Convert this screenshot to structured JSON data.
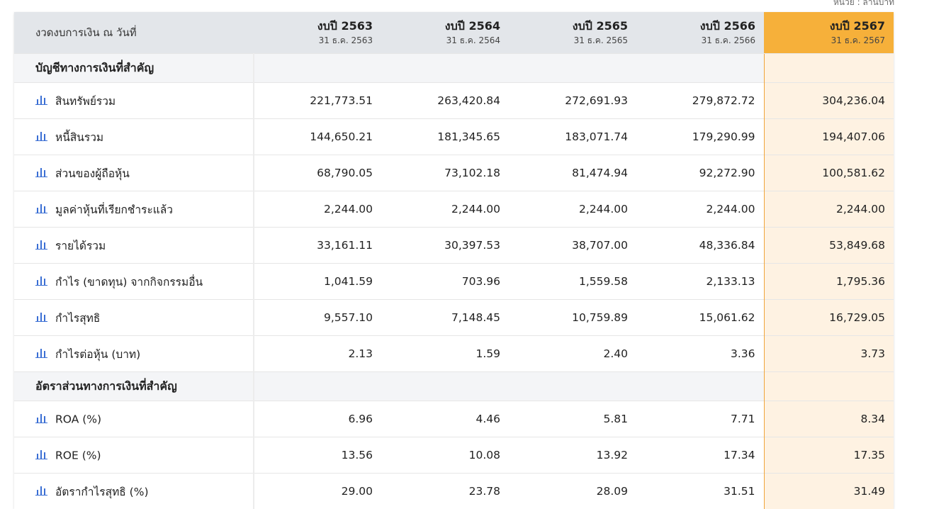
{
  "unit_note": "หน่วย : ล้านบาท",
  "header": {
    "label": "งวดงบการเงิน ณ วันที่",
    "years": [
      {
        "year": "งบปี 2563",
        "date": "31 ธ.ค. 2563"
      },
      {
        "year": "งบปี 2564",
        "date": "31 ธ.ค. 2564"
      },
      {
        "year": "งบปี 2565",
        "date": "31 ธ.ค. 2565"
      },
      {
        "year": "งบปี 2566",
        "date": "31 ธ.ค. 2566"
      },
      {
        "year": "งบปี 2567",
        "date": "31 ธ.ค. 2567"
      }
    ]
  },
  "sections": [
    {
      "title": "บัญชีทางการเงินที่สำคัญ",
      "rows": [
        {
          "label": "สินทรัพย์รวม",
          "icon": "bar-chart-icon",
          "values": [
            "221,773.51",
            "263,420.84",
            "272,691.93",
            "279,872.72",
            "304,236.04"
          ]
        },
        {
          "label": "หนี้สินรวม",
          "icon": "bar-chart-icon",
          "values": [
            "144,650.21",
            "181,345.65",
            "183,071.74",
            "179,290.99",
            "194,407.06"
          ]
        },
        {
          "label": "ส่วนของผู้ถือหุ้น",
          "icon": "bar-chart-icon",
          "values": [
            "68,790.05",
            "73,102.18",
            "81,474.94",
            "92,272.90",
            "100,581.62"
          ]
        },
        {
          "label": "มูลค่าหุ้นที่เรียกชำระแล้ว",
          "icon": "bar-chart-icon",
          "values": [
            "2,244.00",
            "2,244.00",
            "2,244.00",
            "2,244.00",
            "2,244.00"
          ]
        },
        {
          "label": "รายได้รวม",
          "icon": "bar-chart-icon",
          "values": [
            "33,161.11",
            "30,397.53",
            "38,707.00",
            "48,336.84",
            "53,849.68"
          ]
        },
        {
          "label": "กำไร (ขาดทุน) จากกิจกรรมอื่น",
          "icon": "bar-chart-icon",
          "values": [
            "1,041.59",
            "703.96",
            "1,559.58",
            "2,133.13",
            "1,795.36"
          ]
        },
        {
          "label": "กำไรสุทธิ",
          "icon": "bar-chart-icon",
          "values": [
            "9,557.10",
            "7,148.45",
            "10,759.89",
            "15,061.62",
            "16,729.05"
          ]
        },
        {
          "label": "กำไรต่อหุ้น (บาท)",
          "icon": "bar-chart-icon",
          "values": [
            "2.13",
            "1.59",
            "2.40",
            "3.36",
            "3.73"
          ]
        }
      ]
    },
    {
      "title": "อัตราส่วนทางการเงินที่สำคัญ",
      "rows": [
        {
          "label": "ROA (%)",
          "icon": "bar-chart-icon",
          "values": [
            "6.96",
            "4.46",
            "5.81",
            "7.71",
            "8.34"
          ]
        },
        {
          "label": "ROE (%)",
          "icon": "bar-chart-icon",
          "values": [
            "13.56",
            "10.08",
            "13.92",
            "17.34",
            "17.35"
          ]
        },
        {
          "label": "อัตรากำไรสุทธิ (%)",
          "icon": "bar-chart-icon",
          "values": [
            "29.00",
            "23.78",
            "28.09",
            "31.51",
            "31.49"
          ]
        }
      ]
    }
  ],
  "colors": {
    "header_bg": "#e3e6ea",
    "highlight_header": "#f6b03a",
    "highlight_cell": "#fef2e2",
    "icon": "#3b6fd4"
  }
}
